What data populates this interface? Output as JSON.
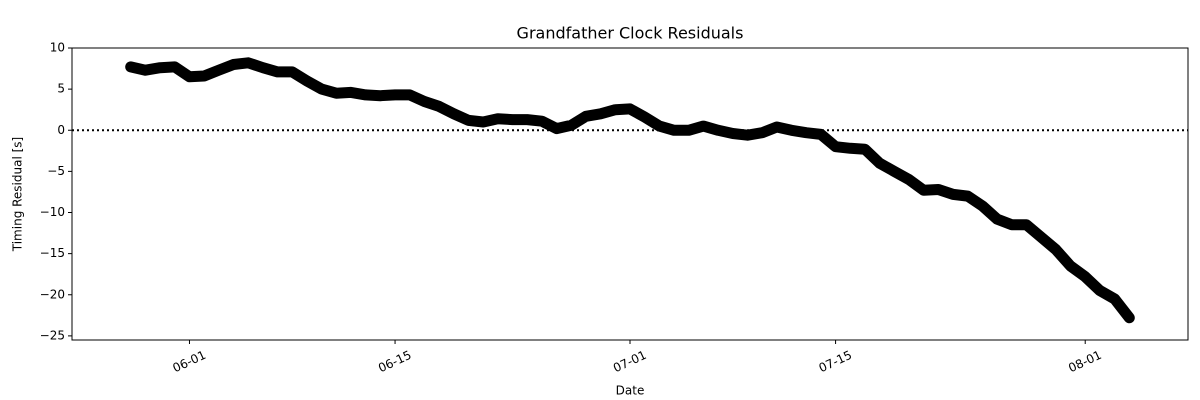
{
  "chart_data": {
    "type": "line",
    "title": "Grandfather Clock Residuals",
    "xlabel": "Date",
    "ylabel": "Timing Residual [s]",
    "x": [
      "05-28",
      "05-29",
      "05-30",
      "05-31",
      "06-01",
      "06-02",
      "06-03",
      "06-04",
      "06-05",
      "06-06",
      "06-07",
      "06-08",
      "06-09",
      "06-10",
      "06-11",
      "06-12",
      "06-13",
      "06-14",
      "06-15",
      "06-16",
      "06-17",
      "06-18",
      "06-19",
      "06-20",
      "06-21",
      "06-22",
      "06-23",
      "06-24",
      "06-25",
      "06-26",
      "06-27",
      "06-28",
      "06-29",
      "06-30",
      "07-01",
      "07-02",
      "07-03",
      "07-04",
      "07-05",
      "07-06",
      "07-07",
      "07-08",
      "07-09",
      "07-10",
      "07-11",
      "07-12",
      "07-13",
      "07-14",
      "07-15",
      "07-16",
      "07-17",
      "07-18",
      "07-19",
      "07-20",
      "07-21",
      "07-22",
      "07-23",
      "07-24",
      "07-25",
      "07-26",
      "07-27",
      "07-28",
      "07-29",
      "07-30",
      "07-31",
      "08-01",
      "08-02",
      "08-03",
      "08-04"
    ],
    "values": [
      7.7,
      7.3,
      7.6,
      7.7,
      6.5,
      6.6,
      7.3,
      8.0,
      8.2,
      7.6,
      7.1,
      7.1,
      6.0,
      5.0,
      4.5,
      4.6,
      4.3,
      4.2,
      4.3,
      4.3,
      3.5,
      2.9,
      2.0,
      1.2,
      1.0,
      1.4,
      1.3,
      1.3,
      1.1,
      0.2,
      0.6,
      1.7,
      2.0,
      2.5,
      2.6,
      1.6,
      0.5,
      0.0,
      0.0,
      0.5,
      0.0,
      -0.4,
      -0.6,
      -0.3,
      0.4,
      0.0,
      -0.3,
      -0.5,
      -2.0,
      -2.2,
      -2.3,
      -4.0,
      -5.0,
      -6.0,
      -7.3,
      -7.2,
      -7.8,
      -8.0,
      -9.2,
      -10.8,
      -11.5,
      -11.5,
      -13.0,
      -14.5,
      -16.5,
      -17.8,
      -19.5,
      -20.5,
      -22.8
    ],
    "color": "#000000",
    "hline": 0,
    "xlim": [
      "05-24",
      "08-08"
    ],
    "xticks": [
      "06-01",
      "06-15",
      "07-01",
      "07-15",
      "08-01"
    ],
    "ylim": [
      -25.5,
      10
    ],
    "yticks": [
      10,
      5,
      0,
      {
        "value": -5,
        "label": "−5"
      },
      {
        "value": -10,
        "label": "−10"
      },
      {
        "value": -15,
        "label": "−15"
      },
      {
        "value": -20,
        "label": "−20"
      },
      {
        "value": -25,
        "label": "−25"
      }
    ]
  }
}
